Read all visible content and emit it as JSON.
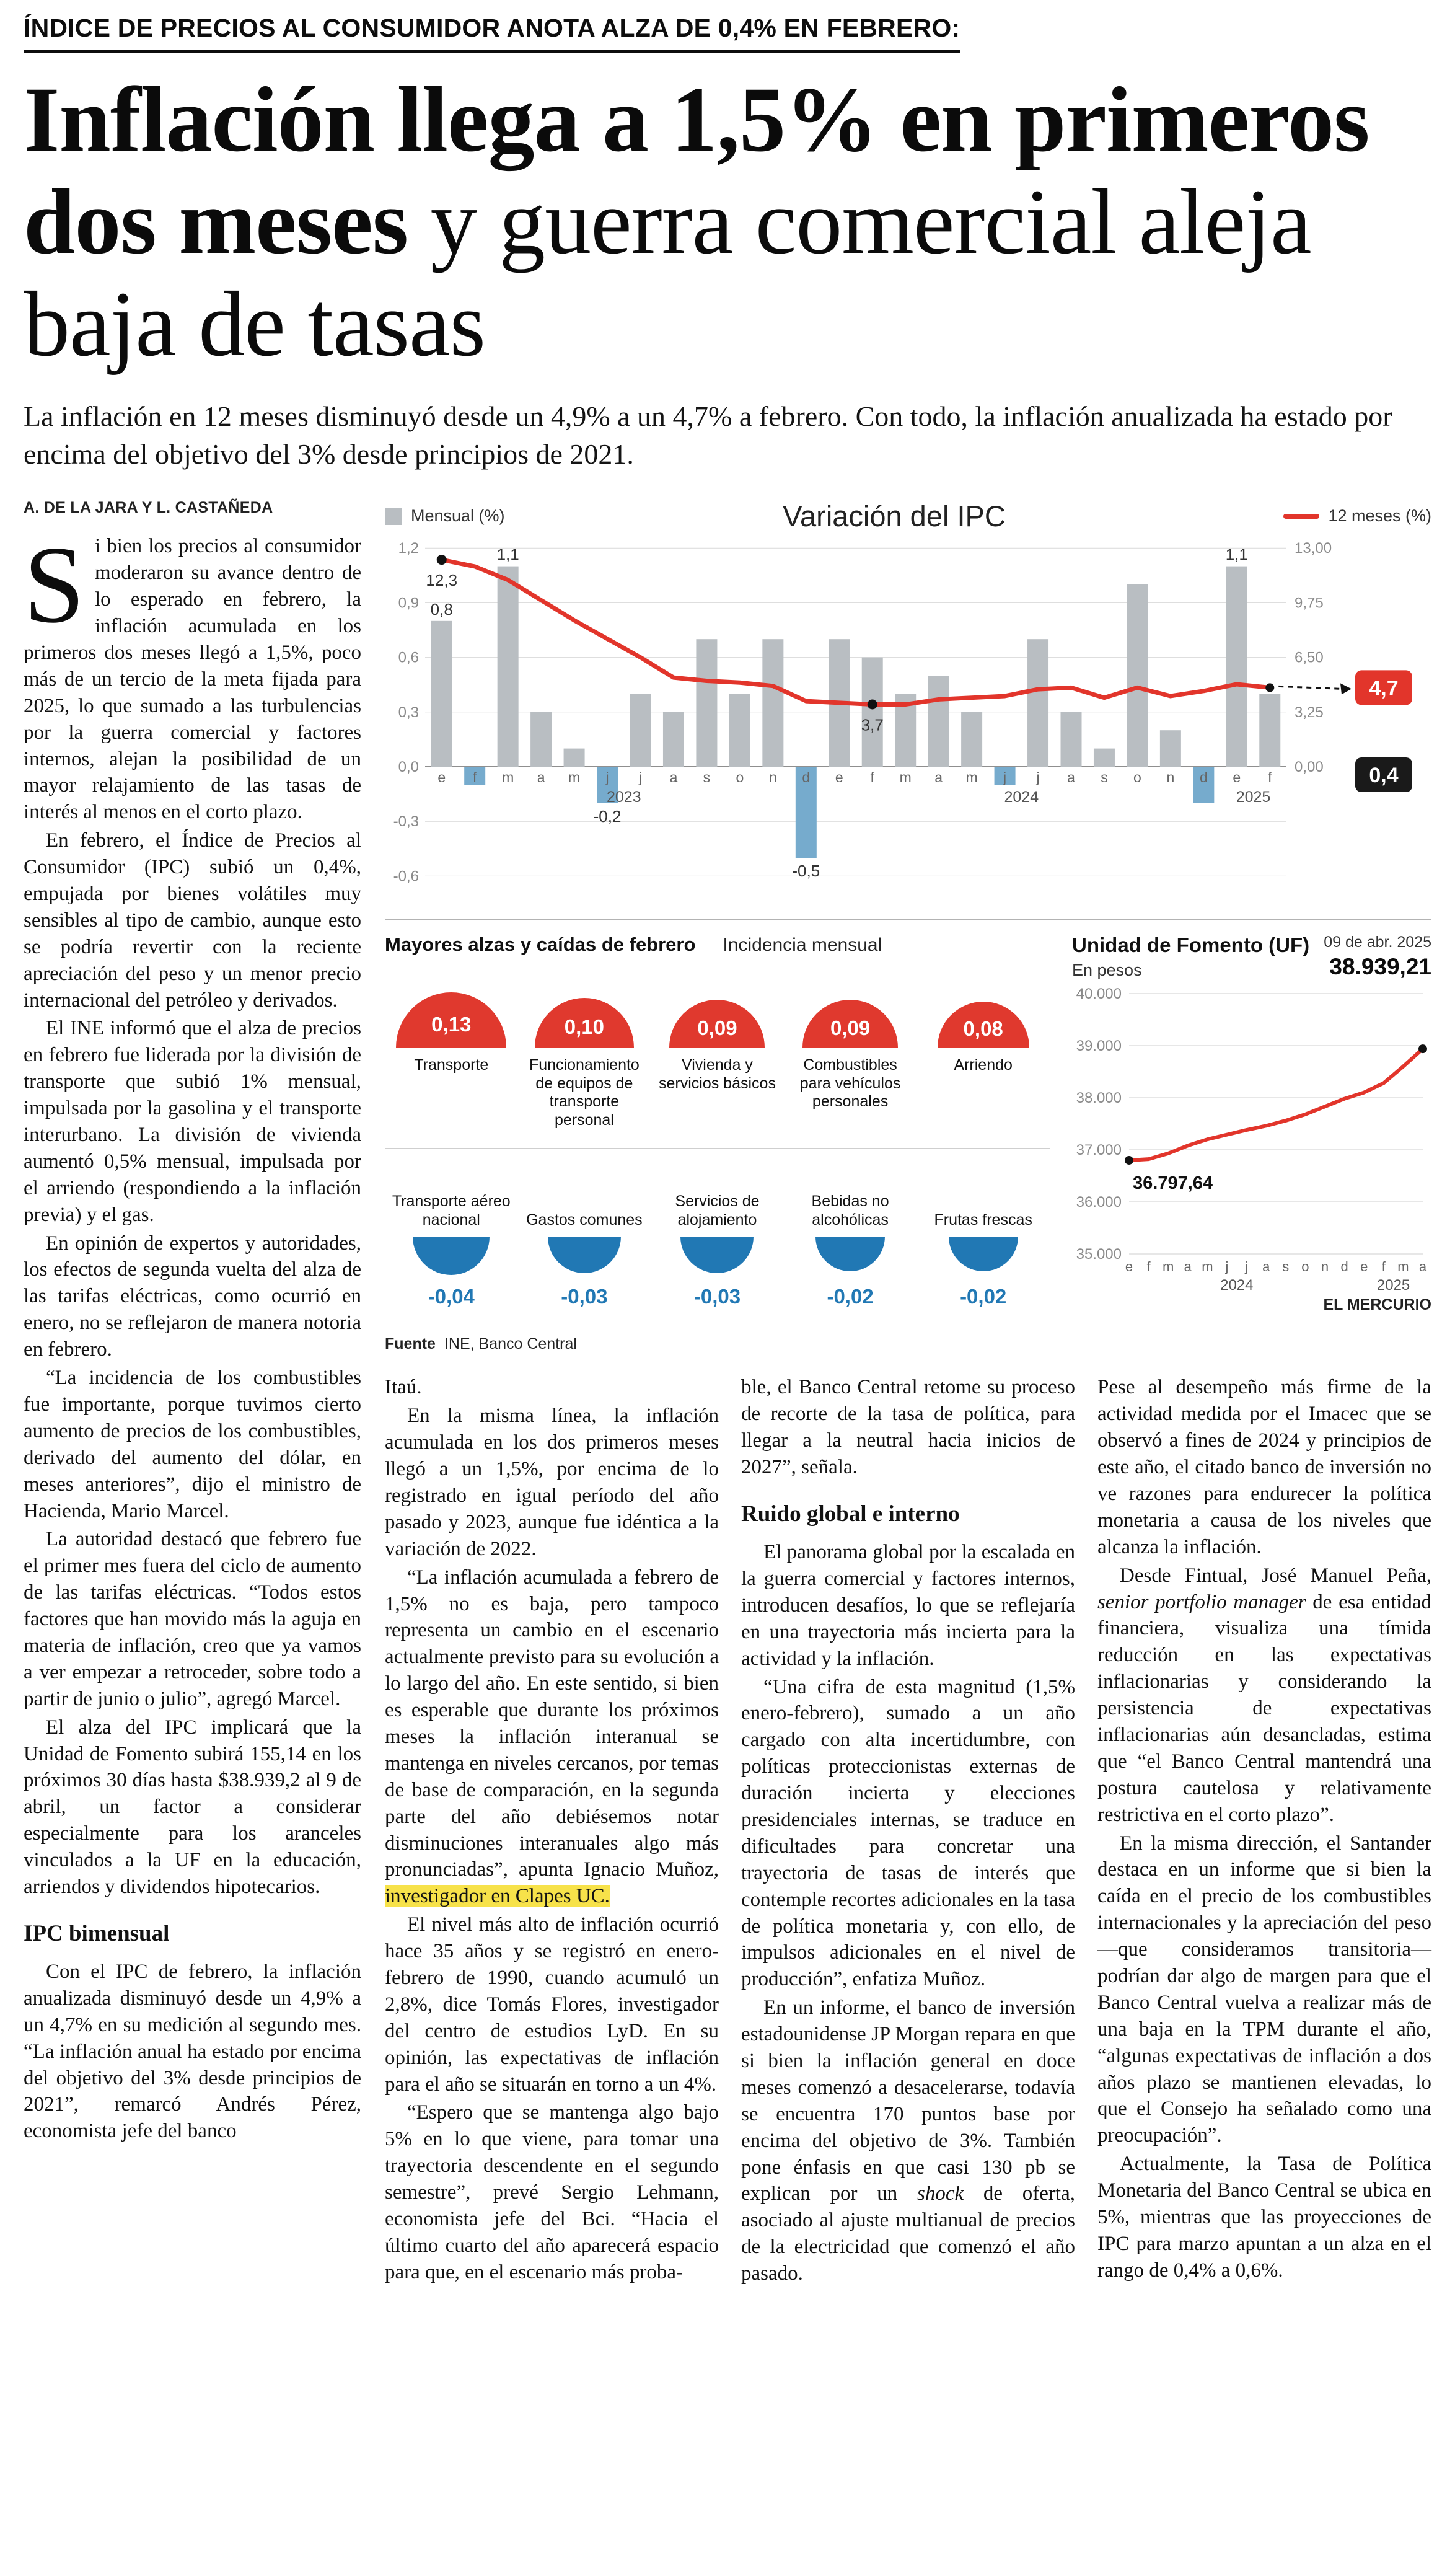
{
  "header": {
    "kicker": "ÍNDICE DE PRECIOS AL CONSUMIDOR ANOTA ALZA DE 0,4% EN FEBRERO:",
    "headline_bold": "Inflación llega a 1,5% en primeros dos meses",
    "headline_rest": " y guerra comercial aleja baja de tasas",
    "deck": "La inflación en 12 meses disminuyó desde un 4,9% a un 4,7% a febrero. Con todo, la inflación anualizada ha estado por encima del objetivo del 3% desde principios de 2021."
  },
  "article": {
    "byline": "A. DE LA JARA Y L. CASTAÑEDA",
    "columns": {
      "col1": [
        {
          "dropcap": true,
          "text": "Si bien los precios al consumidor moderaron su avance dentro de lo esperado en febrero, la inflación acumulada en los primeros dos meses llegó a 1,5%, poco más de un tercio de la meta fijada para 2025, lo que sumado a las turbulencias por la guerra comercial y factores internos, alejan la posibilidad de un mayor relajamiento de las tasas de interés al menos en el corto plazo."
        },
        "En febrero, el Índice de Precios al Consumidor (IPC) subió un 0,4%, empujada por bienes volátiles muy sensibles al tipo de cambio, aunque esto se podría revertir con la reciente apreciación del peso y un menor precio internacional del petróleo y derivados.",
        "El INE informó que el alza de precios en febrero fue liderada por la división de transporte que subió 1% mensual, impulsada por la gasolina y el transporte interurbano. La división de vivienda aumentó 0,5% mensual, impulsada por el arriendo (respondiendo a la inflación previa) y el gas.",
        "En opinión de expertos y autoridades, los efectos de segunda vuelta del alza de las tarifas eléctricas, como ocurrió en enero, no se reflejaron de manera notoria en febrero.",
        "“La incidencia de los combustibles fue importante, porque tuvimos cierto aumento de precios de los combustibles, derivado del aumento del dólar, en meses anteriores”, dijo el ministro de Hacienda, Mario Marcel.",
        "La autoridad destacó que febrero fue el primer mes fuera del ciclo de aumento de las tarifas eléctricas. “Todos estos factores que han movido más la aguja en materia de inflación, creo que ya vamos a ver empezar a retroceder, sobre todo a partir de junio o julio”, agregó Marcel.",
        "El alza del IPC implicará que la Unidad de Fomento subirá 155,14 en los próximos 30 días hasta $38.939,2 al 9 de abril, un factor a considerar especialmente para los aranceles vinculados a la UF en la educación, arriendos y dividendos hipotecarios.",
        {
          "heading": "IPC bimensual"
        },
        "Con el IPC de febrero, la inflación anualizada disminuyó desde un 4,9% a un 4,7% en su medición al segundo mes. “La inflación anual ha estado por encima del objetivo del 3% desde principios de 2021”, remarcó Andrés Pérez, economista jefe del banco"
      ],
      "col2": [
        "Itaú.",
        "En la misma línea, la inflación acumulada en los dos primeros meses llegó a un 1,5%, por encima de lo registrado en igual período del año pasado y 2023, aunque fue idéntica a la variación de 2022.",
        {
          "segments": [
            {
              "text": "“La inflación acumulada a febrero de 1,5% no es baja, pero tampoco representa un cambio en el escenario actualmente previsto para su evolución a lo largo del año. En este sentido, si bien es esperable que durante los próximos meses la inflación interanual se mantenga en niveles cercanos, por temas de base de comparación, en la segunda parte del año debiésemos notar disminuciones interanuales algo más pronunciadas”, apunta Ignacio Muñoz, "
            },
            {
              "text": "investigador en Clapes UC.",
              "style": "highlight"
            }
          ]
        },
        "El nivel más alto de inflación ocurrió hace 35 años y se registró en enero-febrero de 1990, cuando acumuló un 2,8%, dice Tomás Flores, investigador del centro de estudios LyD. En su opinión, las expectativas de inflación para el año se situarán en torno a un 4%.",
        "“Espero que se mantenga algo bajo 5% en lo que viene, para tomar una trayectoria descendente en el segundo semestre”, prevé Sergio Lehmann, economista jefe del Bci. “Hacia el último cuarto del año aparecerá espacio para que, en el escenario más proba-"
      ],
      "col3": [
        "ble, el Banco Central retome su proceso de recorte de la tasa de política, para llegar a la neutral hacia inicios de 2027”, señala.",
        {
          "heading": "Ruido global e interno"
        },
        "El panorama global por la escalada en la guerra comercial y factores internos, introducen desafíos, lo que se reflejaría en una trayectoria más incierta para la actividad y la inflación.",
        "“Una cifra de esta magnitud (1,5% enero-febrero), sumado a un año cargado con alta incertidumbre, con políticas proteccionistas externas de duración incierta y elecciones presidenciales internas, se traduce en dificultades para concretar una trayectoria de tasas de interés que contemple recortes adicionales en la tasa de política monetaria y, con ello, de impulsos adicionales en el nivel de producción”, enfatiza Muñoz.",
        {
          "segments": [
            {
              "text": "En un informe, el banco de inversión estadounidense JP Morgan repara en que si bien la inflación general en doce meses comenzó a desacelerarse, todavía se encuentra 170 puntos base por encima del objetivo de 3%. También pone énfasis en que casi 130 pb se explican por un "
            },
            {
              "text": "shock",
              "style": "italic"
            },
            {
              "text": " de oferta, asociado al ajuste multianual de precios de la electricidad que comenzó el año pasado."
            }
          ]
        }
      ],
      "col4": [
        "Pese al desempeño más firme de la actividad medida por el Imacec que se observó a fines de 2024 y principios de este año, el citado banco de inversión no ve razones para endurecer la política monetaria a causa de los niveles que alcanza la inflación.",
        {
          "segments": [
            {
              "text": "Desde Fintual, José Manuel Peña, "
            },
            {
              "text": "senior portfolio manager",
              "style": "italic"
            },
            {
              "text": " de esa entidad financiera, visualiza una tímida reducción en las expectativas inflacionarias y considerando la persistencia de expectativas inflacionarias aún desancladas, estima que “el Banco Central mantendrá una postura cautelosa y relativamente restrictiva en el corto plazo”."
            }
          ]
        },
        "En la misma dirección, el Santander destaca en un informe que si bien la caída en el precio de los combustibles internacionales y la apreciación del peso —que consideramos transitoria— podrían dar algo de margen para que el Banco Central vuelva a realizar más de una baja en la TPM durante el año, “algunas expectativas de inflación a dos años plazo se mantienen elevadas, lo que el Consejo ha señalado como una preocupación”.",
        "Actualmente, la Tasa de Política Monetaria del Banco Central se ubica en 5%, mientras que las proyecciones de IPC para marzo apuntan a un alza en el rango de 0,4% a 0,6%."
      ]
    }
  },
  "chart_data": [
    {
      "type": "bar+line",
      "title": "Variación del IPC",
      "legend": [
        {
          "label": "Mensual (%)",
          "color": "#b9bec2",
          "kind": "bar"
        },
        {
          "label": "12 meses (%)",
          "color": "#e2352b",
          "kind": "line"
        }
      ],
      "months": [
        "e",
        "f",
        "m",
        "a",
        "m",
        "j",
        "j",
        "a",
        "s",
        "o",
        "n",
        "d",
        "e",
        "f",
        "m",
        "a",
        "m",
        "j",
        "j",
        "a",
        "s",
        "o",
        "n",
        "d",
        "e",
        "f"
      ],
      "year_groups": [
        {
          "label": "2023",
          "start": 0,
          "end": 11
        },
        {
          "label": "2024",
          "start": 12,
          "end": 23
        },
        {
          "label": "2025",
          "start": 24,
          "end": 25
        }
      ],
      "bars": [
        0.8,
        -0.1,
        1.1,
        0.3,
        0.1,
        -0.2,
        0.4,
        0.3,
        0.7,
        0.4,
        0.7,
        -0.5,
        0.7,
        0.6,
        0.4,
        0.5,
        0.3,
        -0.1,
        0.7,
        0.3,
        0.1,
        1.0,
        0.2,
        -0.2,
        1.1,
        0.4
      ],
      "line": [
        12.3,
        11.9,
        11.1,
        9.9,
        8.7,
        7.6,
        6.5,
        5.3,
        5.1,
        5.0,
        4.8,
        3.9,
        3.8,
        3.7,
        3.7,
        4.0,
        4.1,
        4.2,
        4.6,
        4.7,
        4.1,
        4.7,
        4.2,
        4.5,
        4.9,
        4.7
      ],
      "left_axis": {
        "ticks": [
          1.2,
          0.9,
          0.6,
          0.3,
          0.0,
          -0.3,
          -0.6
        ],
        "labels": [
          "1,2",
          "0,9",
          "0,6",
          "0,3",
          "0,0",
          "-0,3",
          "-0,6"
        ]
      },
      "right_axis": {
        "ticks": [
          13.0,
          9.75,
          6.5,
          3.25,
          0.0
        ],
        "labels": [
          "13,00",
          "9,75",
          "6,50",
          "3,25",
          "0,00"
        ]
      },
      "bar_labels": [
        {
          "index": 0,
          "text": "0,8"
        },
        {
          "index": 2,
          "text": "1,1"
        },
        {
          "index": 5,
          "text": "-0,2"
        },
        {
          "index": 11,
          "text": "-0,5"
        },
        {
          "index": 24,
          "text": "1,1"
        }
      ],
      "line_labels": [
        {
          "index": 0,
          "text": "12,3"
        },
        {
          "index": 13,
          "text": "3,7"
        }
      ],
      "badges": [
        {
          "text": "4,7",
          "color": "#e2352b"
        },
        {
          "text": "0,4",
          "color": "#1a1a1a"
        }
      ],
      "bar_color_positive": "#b9bec2",
      "bar_color_negative": "#76abcd",
      "line_color": "#e2352b"
    },
    {
      "type": "semicircle-incidence",
      "title_bold": "Mayores alzas y caídas de febrero",
      "title_regular": "Incidencia mensual",
      "rises": [
        {
          "value": "0,13",
          "num": 0.13,
          "label": "Transporte"
        },
        {
          "value": "0,10",
          "num": 0.1,
          "label": "Funcionamiento de equipos de transporte personal"
        },
        {
          "value": "0,09",
          "num": 0.09,
          "label": "Vivienda y servicios básicos"
        },
        {
          "value": "0,09",
          "num": 0.09,
          "label": "Combustibles para vehículos personales"
        },
        {
          "value": "0,08",
          "num": 0.08,
          "label": "Arriendo"
        }
      ],
      "falls": [
        {
          "value": "-0,04",
          "num": 0.04,
          "label": "Transporte aéreo nacional"
        },
        {
          "value": "-0,03",
          "num": 0.03,
          "label": "Gastos comunes"
        },
        {
          "value": "-0,03",
          "num": 0.03,
          "label": "Servicios de alojamiento"
        },
        {
          "value": "-0,02",
          "num": 0.02,
          "label": "Bebidas no alcohólicas"
        },
        {
          "value": "-0,02",
          "num": 0.02,
          "label": "Frutas frescas"
        }
      ],
      "rise_color": "#e0392e",
      "fall_color": "#2178b4",
      "source_bold": "Fuente",
      "source": "INE, Banco Central"
    },
    {
      "type": "line",
      "title": "Unidad de Fomento (UF)",
      "subtitle": "En pesos",
      "date_label": "09 de abr. 2025",
      "end_label": "38.939,21",
      "start_label": "36.797,64",
      "y_ticks": [
        "40.000",
        "39.000",
        "38.000",
        "37.000",
        "36.000",
        "35.000"
      ],
      "y_values": [
        40000,
        39000,
        38000,
        37000,
        36000,
        35000
      ],
      "x_labels": [
        "e",
        "f",
        "m",
        "a",
        "m",
        "j",
        "j",
        "a",
        "s",
        "o",
        "n",
        "d",
        "e",
        "f",
        "m",
        "a"
      ],
      "year_groups": [
        {
          "label": "2024",
          "start": 0,
          "end": 11
        },
        {
          "label": "2025",
          "start": 12,
          "end": 15
        }
      ],
      "values": [
        36798,
        36820,
        36930,
        37080,
        37200,
        37290,
        37380,
        37460,
        37560,
        37680,
        37830,
        37980,
        38100,
        38280,
        38600,
        38939
      ],
      "line_color": "#e2352b",
      "credit": "EL MERCURIO"
    }
  ]
}
